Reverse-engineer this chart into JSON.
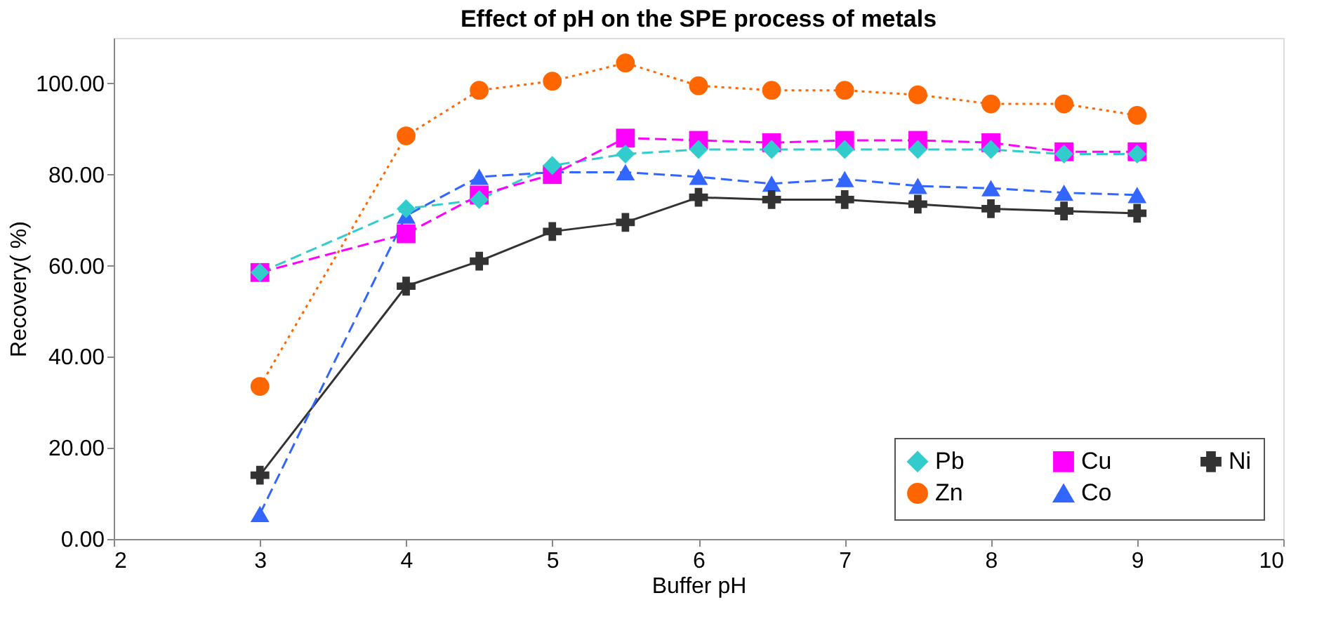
{
  "chart_data": {
    "type": "line",
    "title": "Effect of pH on the SPE process of metals",
    "xlabel": "Buffer pH",
    "ylabel": "Recovery( %)",
    "x": [
      3,
      4,
      4.5,
      5,
      5.5,
      6,
      6.5,
      7,
      7.5,
      8,
      8.5,
      9
    ],
    "series": [
      {
        "name": "Pb",
        "color": "#33cccc",
        "marker": "diamond",
        "line_style": "dashed",
        "values": [
          58.5,
          72.5,
          74.5,
          82,
          84.5,
          85.5,
          85.5,
          85.5,
          85.5,
          85.5,
          84.5,
          84.5
        ]
      },
      {
        "name": "Cu",
        "color": "#ff00ff",
        "marker": "square",
        "line_style": "dashed",
        "values": [
          58.5,
          67,
          75.5,
          80,
          88,
          87.5,
          87,
          87.5,
          87.5,
          87,
          85,
          85
        ]
      },
      {
        "name": "Ni",
        "color": "#333333",
        "marker": "cross",
        "line_style": "solid",
        "values": [
          14,
          55.5,
          61,
          67.5,
          69.5,
          75,
          74.5,
          74.5,
          73.5,
          72.5,
          72,
          71.5
        ]
      },
      {
        "name": "Zn",
        "color": "#ff6600",
        "marker": "circle",
        "line_style": "dotted",
        "values": [
          33.5,
          88.5,
          98.5,
          100.5,
          104.5,
          99.5,
          98.5,
          98.5,
          97.5,
          95.5,
          95.5,
          93
        ]
      },
      {
        "name": "Co",
        "color": "#3366ff",
        "marker": "triangle",
        "line_style": "dashed",
        "values": [
          5.5,
          71,
          79.5,
          80.5,
          80.5,
          79.5,
          78,
          79,
          77.5,
          77,
          76,
          75.5
        ]
      }
    ],
    "xlim": [
      2,
      10
    ],
    "xticks": [
      2,
      3,
      4,
      5,
      6,
      7,
      8,
      9,
      10
    ],
    "ylim": [
      0,
      110
    ],
    "yticks": [
      {
        "value": 0,
        "label": "0.00"
      },
      {
        "value": 20,
        "label": "20.00"
      },
      {
        "value": 40,
        "label": "40.00"
      },
      {
        "value": 60,
        "label": "60.00"
      },
      {
        "value": 80,
        "label": "80.00"
      },
      {
        "value": 100,
        "label": "100.00"
      }
    ],
    "grid": false,
    "legend": "bottom right"
  }
}
